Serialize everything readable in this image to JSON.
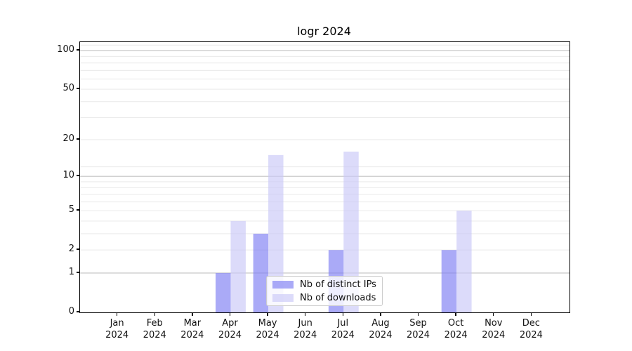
{
  "chart_data": {
    "type": "bar",
    "title": "logr 2024",
    "x_categories": [
      "Jan",
      "Feb",
      "Mar",
      "Apr",
      "May",
      "Jun",
      "Jul",
      "Aug",
      "Sep",
      "Oct",
      "Nov",
      "Dec"
    ],
    "x_year": "2024",
    "series": [
      {
        "name": "Nb of distinct IPs",
        "color": "rgba(124,124,243,0.65)",
        "values": [
          0,
          0,
          0,
          1,
          3,
          0,
          2,
          0,
          0,
          2,
          0,
          0
        ]
      },
      {
        "name": "Nb of downloads",
        "color": "rgba(201,200,248,0.65)",
        "values": [
          0,
          0,
          0,
          4,
          15,
          0,
          16,
          0,
          0,
          5,
          0,
          0
        ]
      }
    ],
    "y_ticks": [
      0,
      1,
      2,
      5,
      10,
      20,
      50,
      100
    ],
    "y_scale": "log1p",
    "y_max": 116,
    "ylim": [
      0,
      116
    ],
    "xlabel": "",
    "ylabel": "",
    "grid": "on",
    "grid_major_values": [
      1,
      10,
      100
    ],
    "grid_minor_values": [
      2,
      3,
      4,
      5,
      6,
      7,
      8,
      9,
      12,
      20,
      30,
      40,
      50,
      60,
      70,
      80,
      90,
      110
    ],
    "legend_position": "lower center",
    "legend_entries": [
      "Nb of distinct IPs",
      "Nb of downloads"
    ],
    "bar_group_width_fraction": 0.8
  },
  "colors": {
    "background": "#ffffff",
    "axis": "#000000",
    "grid_major": "#c2c2c2",
    "grid_minor": "#e9e9e9",
    "ips_bar": "rgba(124,124,243,0.65)",
    "downloads_bar": "rgba(201,200,248,0.65)",
    "legend_border": "#cccccc",
    "text": "#111111"
  }
}
